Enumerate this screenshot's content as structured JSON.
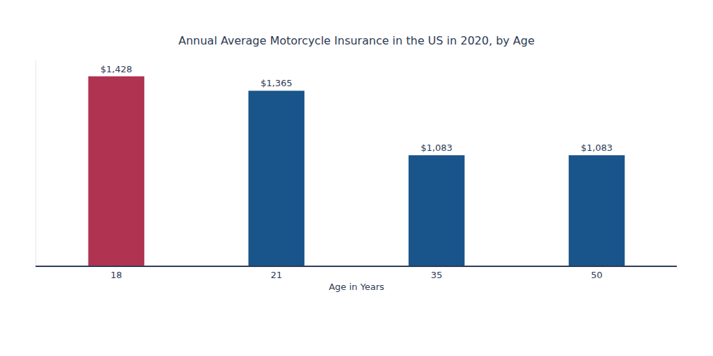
{
  "chart_data": {
    "type": "bar",
    "title": "Annual Average Motorcycle Insurance in the US in 2020, by Age",
    "x_label": "Age in Years",
    "categories": [
      "18",
      "21",
      "35",
      "50"
    ],
    "values": [
      1428,
      1365,
      1083,
      1083
    ],
    "value_labels": [
      "$1,428",
      "$1,365",
      "$1,083",
      "$1,083"
    ],
    "colors": [
      "#b03352",
      "#19548a",
      "#19548a",
      "#19548a"
    ],
    "ylim": [
      600,
      1500
    ],
    "yticks": [],
    "grid": false,
    "data_labels": true,
    "tick_labels": "x"
  }
}
